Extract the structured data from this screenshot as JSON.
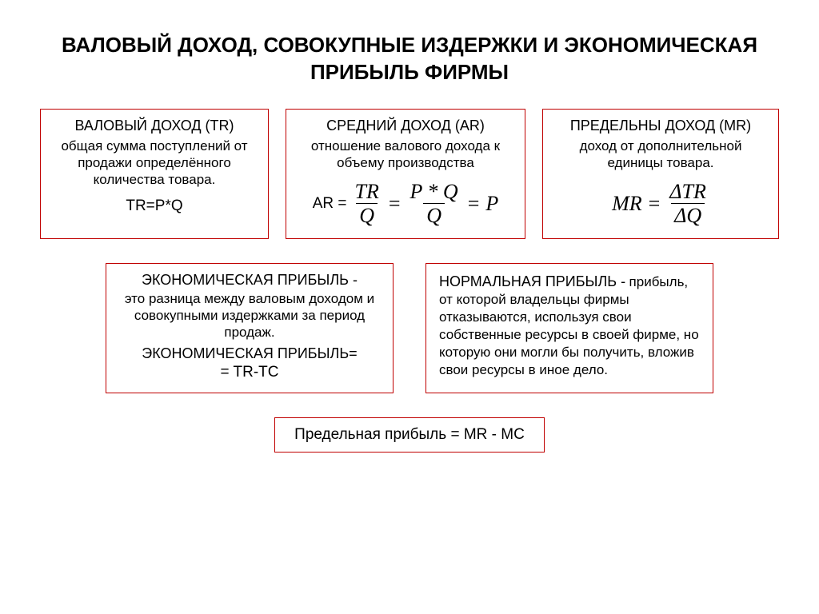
{
  "colors": {
    "border": "#c00000",
    "text": "#000000",
    "background": "#ffffff"
  },
  "title": "ВАЛОВЫЙ ДОХОД, СОВОКУПНЫЕ ИЗДЕРЖКИ И ЭКОНОМИЧЕСКАЯ ПРИБЫЛЬ ФИРМЫ",
  "boxes": {
    "tr": {
      "heading": "ВАЛОВЫЙ ДОХОД (TR)",
      "desc": "общая сумма поступлений от продажи определённого количества товара.",
      "formula": "TR=P*Q"
    },
    "ar": {
      "heading": "СРЕДНИЙ ДОХОД (AR)",
      "desc": "отношение валового дохода к объему производства",
      "formula": {
        "prefix": "AR =",
        "frac1_num": "TR",
        "frac1_den": "Q",
        "frac2_num": "P * Q",
        "frac2_den": "Q",
        "tail": "P"
      }
    },
    "mr": {
      "heading": "ПРЕДЕЛЬНЫ ДОХОД (MR)",
      "desc": "доход от дополнительной единицы товара.",
      "formula": {
        "lhs": "MR",
        "num": "ΔTR",
        "den": "ΔQ"
      }
    },
    "econ": {
      "heading1": "ЭКОНОМИЧЕСКАЯ ПРИБЫЛЬ -",
      "desc": "это разница между валовым доходом и совокупными издержками за период продаж.",
      "heading2": "ЭКОНОМИЧЕСКАЯ ПРИБЫЛЬ=",
      "formula": "= TR-TC"
    },
    "norm": {
      "heading": "НОРМАЛЬНАЯ ПРИБЫЛЬ -",
      "text": "прибыль, от которой владельцы фирмы отказываются, используя свои собственные ресурсы в своей фирме, но которую они могли бы получить, вложив свои ресурсы в иное дело."
    },
    "marginal": {
      "text": "Предельная прибыль = MR - MC"
    }
  }
}
